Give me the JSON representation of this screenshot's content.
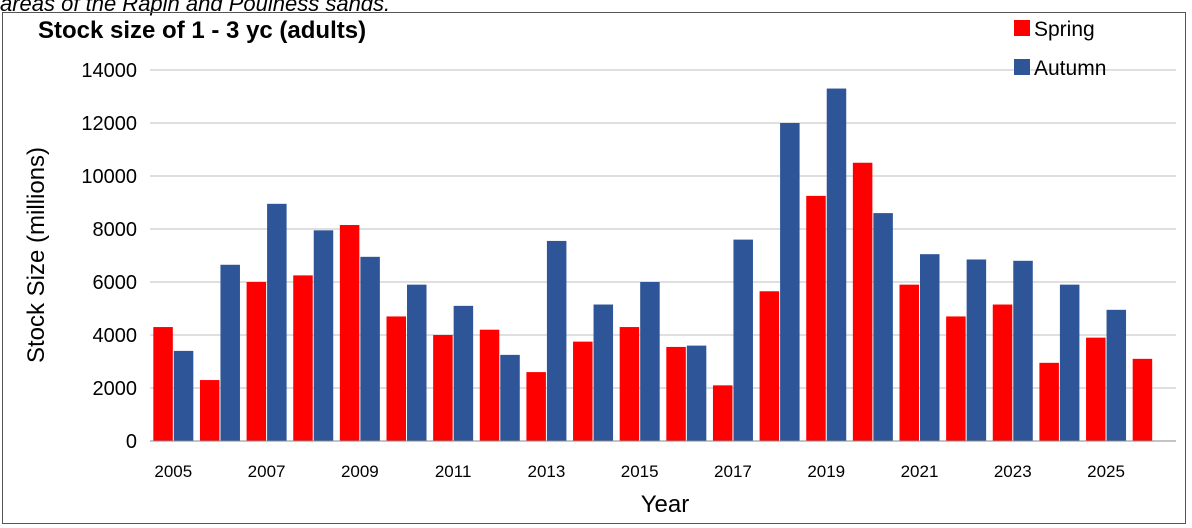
{
  "caption": "areas of the Rapin and Poulness sands.",
  "chart_data": {
    "type": "bar",
    "title": "Stock size of 1 - 3 yc (adults)",
    "xlabel": "Year",
    "ylabel": "Stock Size (millions)",
    "ylim": [
      0,
      14000
    ],
    "yticks": [
      0,
      2000,
      4000,
      6000,
      8000,
      10000,
      12000,
      14000
    ],
    "categories": [
      "2005",
      "2006",
      "2007",
      "2008",
      "2009",
      "2010",
      "2011",
      "2012",
      "2013",
      "2014",
      "2015",
      "2016",
      "2017",
      "2018",
      "2019",
      "2020",
      "2021",
      "2022",
      "2023",
      "2024",
      "2025",
      "2026"
    ],
    "xtick_labels": [
      "2005",
      "2007",
      "2009",
      "2011",
      "2013",
      "2015",
      "2017",
      "2019",
      "2021",
      "2023",
      "2025"
    ],
    "grid": true,
    "legend_position": "top-right",
    "series": [
      {
        "name": "Spring",
        "color": "#ff0000",
        "values": [
          4300,
          2300,
          6000,
          6250,
          8150,
          4700,
          4000,
          4200,
          2600,
          3750,
          4300,
          3550,
          2100,
          5650,
          9250,
          10500,
          5900,
          4700,
          5150,
          2950,
          3900,
          3100
        ]
      },
      {
        "name": "Autumn",
        "color": "#2e5597",
        "values": [
          3400,
          6650,
          8950,
          7950,
          6950,
          5900,
          5100,
          3250,
          7550,
          5150,
          6000,
          3600,
          7600,
          12000,
          13300,
          8600,
          7050,
          6850,
          6800,
          5900,
          4950,
          null
        ]
      }
    ]
  }
}
